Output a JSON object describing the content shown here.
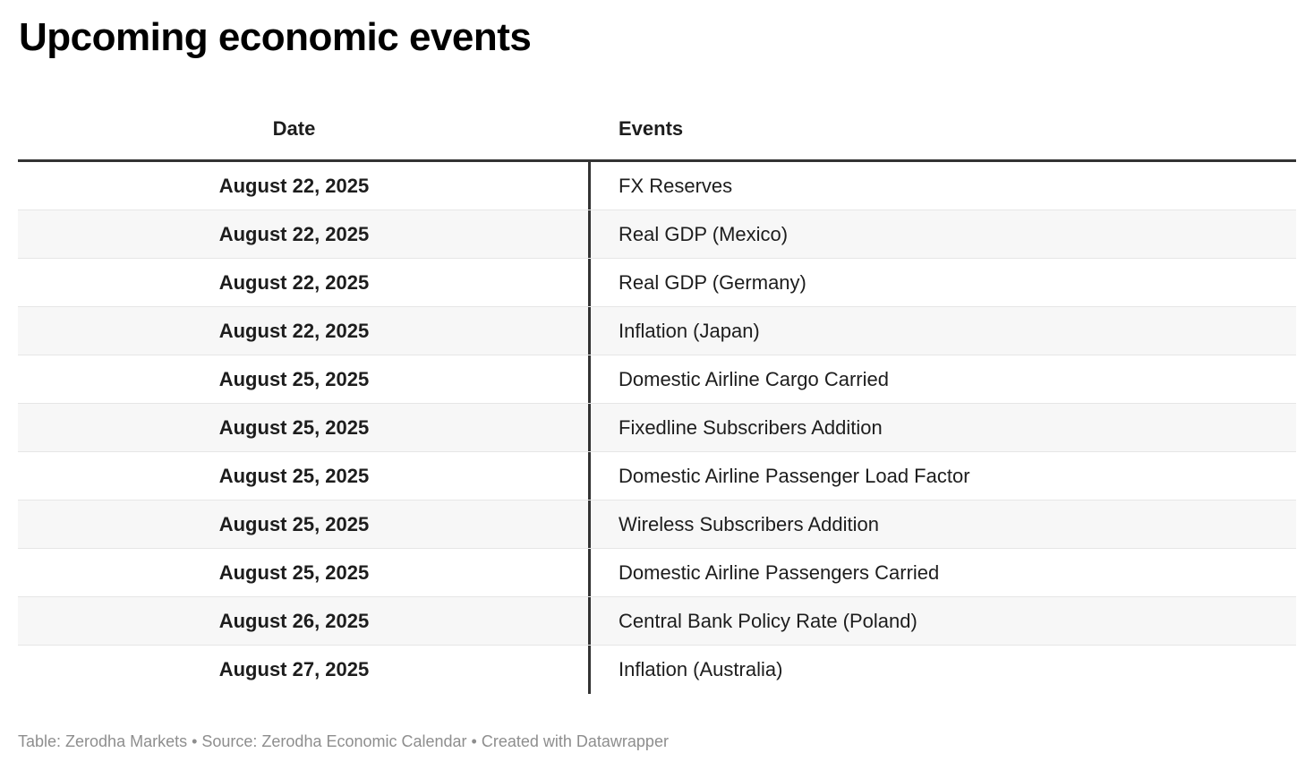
{
  "title": "Upcoming economic events",
  "table": {
    "columns": {
      "date": "Date",
      "events": "Events"
    },
    "rows": [
      {
        "date": "August 22, 2025",
        "event": "FX Reserves"
      },
      {
        "date": "August 22, 2025",
        "event": "Real GDP (Mexico)"
      },
      {
        "date": "August 22, 2025",
        "event": "Real GDP (Germany)"
      },
      {
        "date": "August 22, 2025",
        "event": "Inflation (Japan)"
      },
      {
        "date": "August 25, 2025",
        "event": "Domestic Airline Cargo Carried"
      },
      {
        "date": "August 25, 2025",
        "event": "Fixedline Subscribers Addition"
      },
      {
        "date": "August 25, 2025",
        "event": "Domestic Airline Passenger Load Factor"
      },
      {
        "date": "August 25, 2025",
        "event": "Wireless Subscribers Addition"
      },
      {
        "date": "August 25, 2025",
        "event": "Domestic Airline Passengers Carried"
      },
      {
        "date": "August 26, 2025",
        "event": "Central Bank Policy Rate (Poland)"
      },
      {
        "date": "August 27, 2025",
        "event": "Inflation (Australia)"
      }
    ]
  },
  "footer": "Table: Zerodha Markets • Source: Zerodha Economic Calendar • Created with Datawrapper",
  "colors": {
    "header_rule": "#333333",
    "column_divider": "#333333",
    "row_stripe": "#f7f7f7",
    "row_separator": "#e6e6e6",
    "text": "#1d1d1d",
    "title": "#000000",
    "footer_text": "#8e8e8e"
  }
}
